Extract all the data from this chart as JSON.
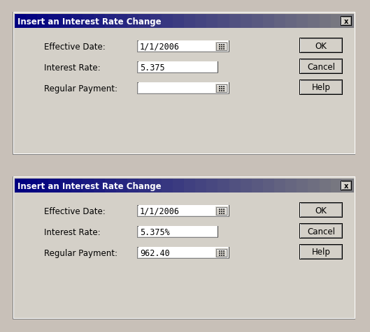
{
  "bg_color": "#d8d0c8",
  "dialog_bg": "#d4d0c8",
  "title_text": "Insert an Interest Rate Change",
  "title_color": "#ffffff",
  "field_labels": [
    "Effective Date:",
    "Interest Rate:",
    "Regular Payment:"
  ],
  "dialog1": {
    "date_value": "1/1/2006",
    "interest_value": "5.375",
    "payment_value": ""
  },
  "dialog2": {
    "date_value": "1/1/2006",
    "interest_value": "5.375%",
    "payment_value": "962.40"
  },
  "buttons": [
    "OK",
    "Cancel",
    "Help"
  ],
  "text_color": "#000000",
  "font_size": 8.5,
  "title_font_size": 8.5,
  "outer_bg": "#c8c0b8"
}
